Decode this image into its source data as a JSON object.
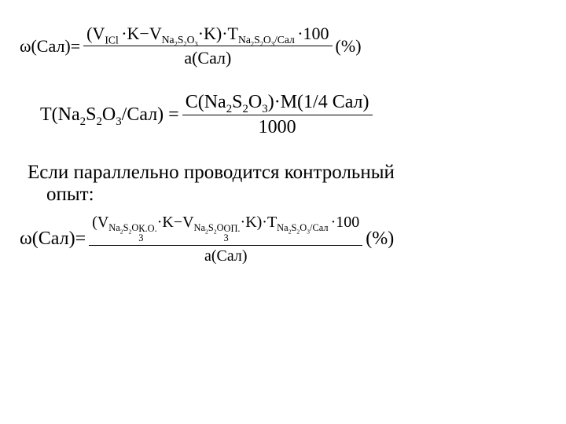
{
  "formula1": {
    "lhs": "ω(Сал)=",
    "num_parts": {
      "p1": "(V",
      "sub1": "ICl ",
      "p2": "·K−V",
      "sub2": "Na",
      "sub2a": "2",
      "sub2b": "S",
      "sub2c": "2",
      "sub2d": "O",
      "sub2e": "3",
      "p3": "·K)·T",
      "sub3": "Na",
      "sub3a": "2",
      "sub3b": "S",
      "sub3c": "2",
      "sub3d": "O",
      "sub3e": "3",
      "sub3f": "/Сал ",
      "p4": "·100"
    },
    "den": "a(Сал)",
    "suffix": "(%)"
  },
  "formula2": {
    "lhs_parts": {
      "p1": "T(Na",
      "s1": "2",
      "p2": "S",
      "s2": "2",
      "p3": "O",
      "s3": "3",
      "p4": "/Сал) = "
    },
    "num_parts": {
      "p1": "C(Na",
      "s1": "2",
      "p2": "S",
      "s2": "2",
      "p3": "O",
      "s3": "3",
      "p4": ")·М(1/4 Сал)"
    },
    "den": "1000"
  },
  "text": {
    "line1": "Если параллельно проводится контрольный",
    "line2": "опыт:"
  },
  "formula3": {
    "lhs": "ω(Сал)=",
    "num_parts": {
      "p1": "(V",
      "sub1a": "Na",
      "ss1_2": "2",
      "sub1b": "S",
      "ss2_2": "2",
      "sub1c": "O",
      "ss3_3": "3",
      "sup1": "К.О.",
      "p2": "·K−V",
      "sub2a": "Na",
      "ss4_2": "2",
      "sub2b": "S",
      "ss5_2": "2",
      "sub2c": "O",
      "ss6_3": "3",
      "sup2": "ОП.",
      "p3": "·K)·T",
      "sub3a": "Na",
      "ss7_2": "2",
      "sub3b": "S",
      "ss8_2": "2",
      "sub3c": "O",
      "ss9_3": "3",
      "sub3d": "/Сал ",
      "p4": "·100"
    },
    "den": "a(Сал)",
    "suffix": "(%)"
  }
}
